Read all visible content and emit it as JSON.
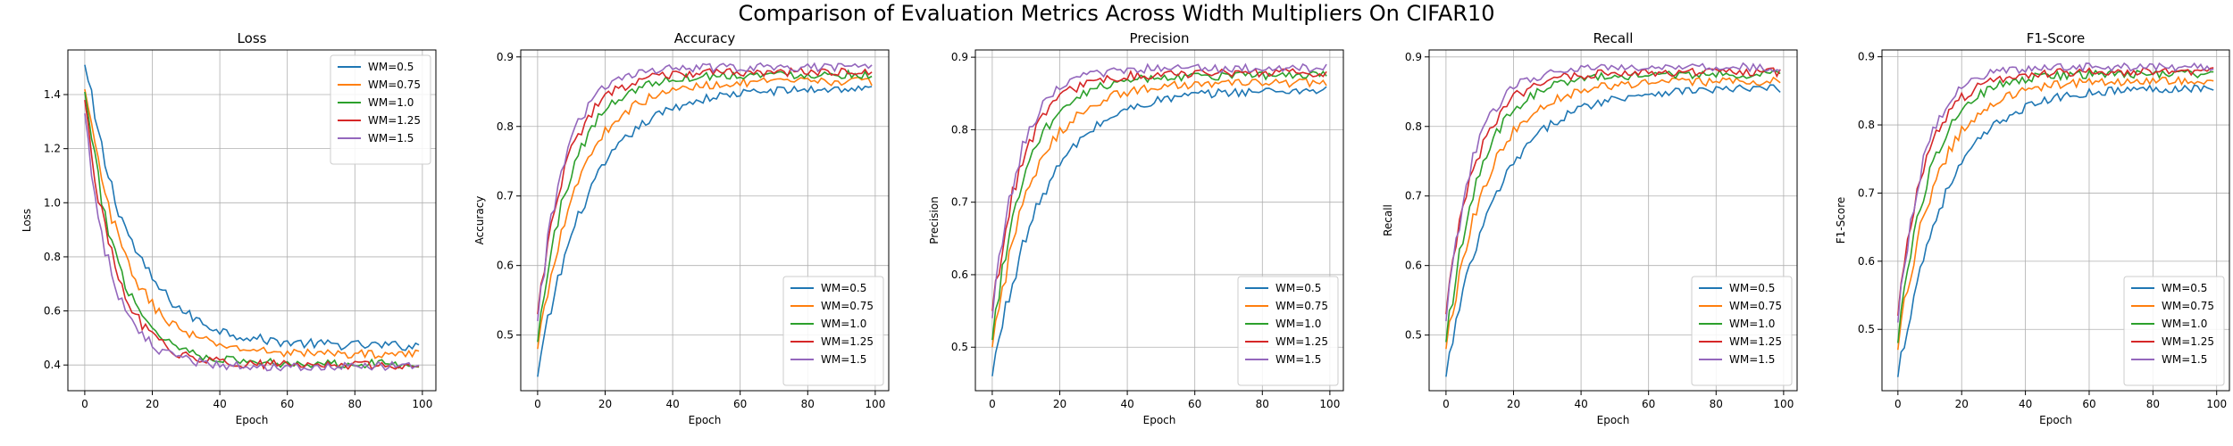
{
  "figure": {
    "suptitle": "Comparison of Evaluation Metrics Across Width Multipliers On CIFAR10"
  },
  "colors": {
    "WM=0.5": "#1f77b4",
    "WM=0.75": "#ff7f0e",
    "WM=1.0": "#2ca02c",
    "WM=1.25": "#d62728",
    "WM=1.5": "#9467bd",
    "grid": "#b0b0b0"
  },
  "chart_data": [
    {
      "type": "line",
      "title": "Loss",
      "xlabel": "Epoch",
      "ylabel": "Loss",
      "xlim": [
        -5,
        104
      ],
      "ylim": [
        0.305,
        1.565
      ],
      "xticks": [
        0,
        20,
        40,
        60,
        80,
        100
      ],
      "yticks": [
        0.4,
        0.6,
        0.8,
        1.0,
        1.2,
        1.4
      ],
      "ytick_labels": [
        "0.4",
        "0.6",
        "0.8",
        "1.0",
        "1.2",
        "1.4"
      ],
      "grid": true,
      "legend": "upper right",
      "series": [
        {
          "name": "WM=0.5",
          "start": 1.51,
          "end": 0.47,
          "tau": 14,
          "noise": 0.018
        },
        {
          "name": "WM=0.75",
          "start": 1.42,
          "end": 0.44,
          "tau": 12,
          "noise": 0.016
        },
        {
          "name": "WM=1.0",
          "start": 1.41,
          "end": 0.405,
          "tau": 10,
          "noise": 0.016
        },
        {
          "name": "WM=1.25",
          "start": 1.38,
          "end": 0.4,
          "tau": 9,
          "noise": 0.016
        },
        {
          "name": "WM=1.5",
          "start": 1.33,
          "end": 0.395,
          "tau": 8,
          "noise": 0.017
        }
      ]
    },
    {
      "type": "line",
      "title": "Accuracy",
      "xlabel": "Epoch",
      "ylabel": "Accuracy",
      "xlim": [
        -5,
        104
      ],
      "ylim": [
        0.42,
        0.91
      ],
      "xticks": [
        0,
        20,
        40,
        60,
        80,
        100
      ],
      "yticks": [
        0.5,
        0.6,
        0.7,
        0.8,
        0.9
      ],
      "ytick_labels": [
        "0.5",
        "0.6",
        "0.7",
        "0.8",
        "0.9"
      ],
      "grid": true,
      "legend": "lower right",
      "series": [
        {
          "name": "WM=0.5",
          "start": 0.44,
          "end": 0.855,
          "tau": 15,
          "noise": 0.006
        },
        {
          "name": "WM=0.75",
          "start": 0.48,
          "end": 0.865,
          "tau": 12,
          "noise": 0.006
        },
        {
          "name": "WM=1.0",
          "start": 0.49,
          "end": 0.875,
          "tau": 10,
          "noise": 0.006
        },
        {
          "name": "WM=1.25",
          "start": 0.53,
          "end": 0.878,
          "tau": 9,
          "noise": 0.006
        },
        {
          "name": "WM=1.5",
          "start": 0.52,
          "end": 0.885,
          "tau": 8,
          "noise": 0.006
        }
      ]
    },
    {
      "type": "line",
      "title": "Precision",
      "xlabel": "Epoch",
      "ylabel": "Precision",
      "xlim": [
        -5,
        104
      ],
      "ylim": [
        0.44,
        0.91
      ],
      "xticks": [
        0,
        20,
        40,
        60,
        80,
        100
      ],
      "yticks": [
        0.5,
        0.6,
        0.7,
        0.8,
        0.9
      ],
      "ytick_labels": [
        "0.5",
        "0.6",
        "0.7",
        "0.8",
        "0.9"
      ],
      "grid": true,
      "legend": "lower right",
      "series": [
        {
          "name": "WM=0.5",
          "start": 0.46,
          "end": 0.855,
          "tau": 15,
          "noise": 0.006
        },
        {
          "name": "WM=0.75",
          "start": 0.5,
          "end": 0.865,
          "tau": 12,
          "noise": 0.006
        },
        {
          "name": "WM=1.0",
          "start": 0.51,
          "end": 0.875,
          "tau": 10,
          "noise": 0.006
        },
        {
          "name": "WM=1.25",
          "start": 0.55,
          "end": 0.878,
          "tau": 9,
          "noise": 0.006
        },
        {
          "name": "WM=1.5",
          "start": 0.54,
          "end": 0.885,
          "tau": 8,
          "noise": 0.006
        }
      ]
    },
    {
      "type": "line",
      "title": "Recall",
      "xlabel": "Epoch",
      "ylabel": "Recall",
      "xlim": [
        -5,
        104
      ],
      "ylim": [
        0.42,
        0.91
      ],
      "xticks": [
        0,
        20,
        40,
        60,
        80,
        100
      ],
      "yticks": [
        0.5,
        0.6,
        0.7,
        0.8,
        0.9
      ],
      "ytick_labels": [
        "0.5",
        "0.6",
        "0.7",
        "0.8",
        "0.9"
      ],
      "grid": true,
      "legend": "lower right",
      "series": [
        {
          "name": "WM=0.5",
          "start": 0.44,
          "end": 0.855,
          "tau": 15,
          "noise": 0.006
        },
        {
          "name": "WM=0.75",
          "start": 0.48,
          "end": 0.865,
          "tau": 12,
          "noise": 0.006
        },
        {
          "name": "WM=1.0",
          "start": 0.49,
          "end": 0.875,
          "tau": 10,
          "noise": 0.006
        },
        {
          "name": "WM=1.25",
          "start": 0.53,
          "end": 0.878,
          "tau": 9,
          "noise": 0.006
        },
        {
          "name": "WM=1.5",
          "start": 0.52,
          "end": 0.885,
          "tau": 8,
          "noise": 0.006
        }
      ]
    },
    {
      "type": "line",
      "title": "F1-Score",
      "xlabel": "Epoch",
      "ylabel": "F1-Score",
      "xlim": [
        -5,
        104
      ],
      "ylim": [
        0.41,
        0.91
      ],
      "xticks": [
        0,
        20,
        40,
        60,
        80,
        100
      ],
      "yticks": [
        0.5,
        0.6,
        0.7,
        0.8,
        0.9
      ],
      "ytick_labels": [
        "0.5",
        "0.6",
        "0.7",
        "0.8",
        "0.9"
      ],
      "grid": true,
      "legend": "lower right",
      "series": [
        {
          "name": "WM=0.5",
          "start": 0.43,
          "end": 0.855,
          "tau": 15,
          "noise": 0.006
        },
        {
          "name": "WM=0.75",
          "start": 0.47,
          "end": 0.865,
          "tau": 12,
          "noise": 0.006
        },
        {
          "name": "WM=1.0",
          "start": 0.48,
          "end": 0.875,
          "tau": 10,
          "noise": 0.006
        },
        {
          "name": "WM=1.25",
          "start": 0.52,
          "end": 0.878,
          "tau": 9,
          "noise": 0.006
        },
        {
          "name": "WM=1.5",
          "start": 0.51,
          "end": 0.885,
          "tau": 8,
          "noise": 0.006
        }
      ]
    }
  ]
}
